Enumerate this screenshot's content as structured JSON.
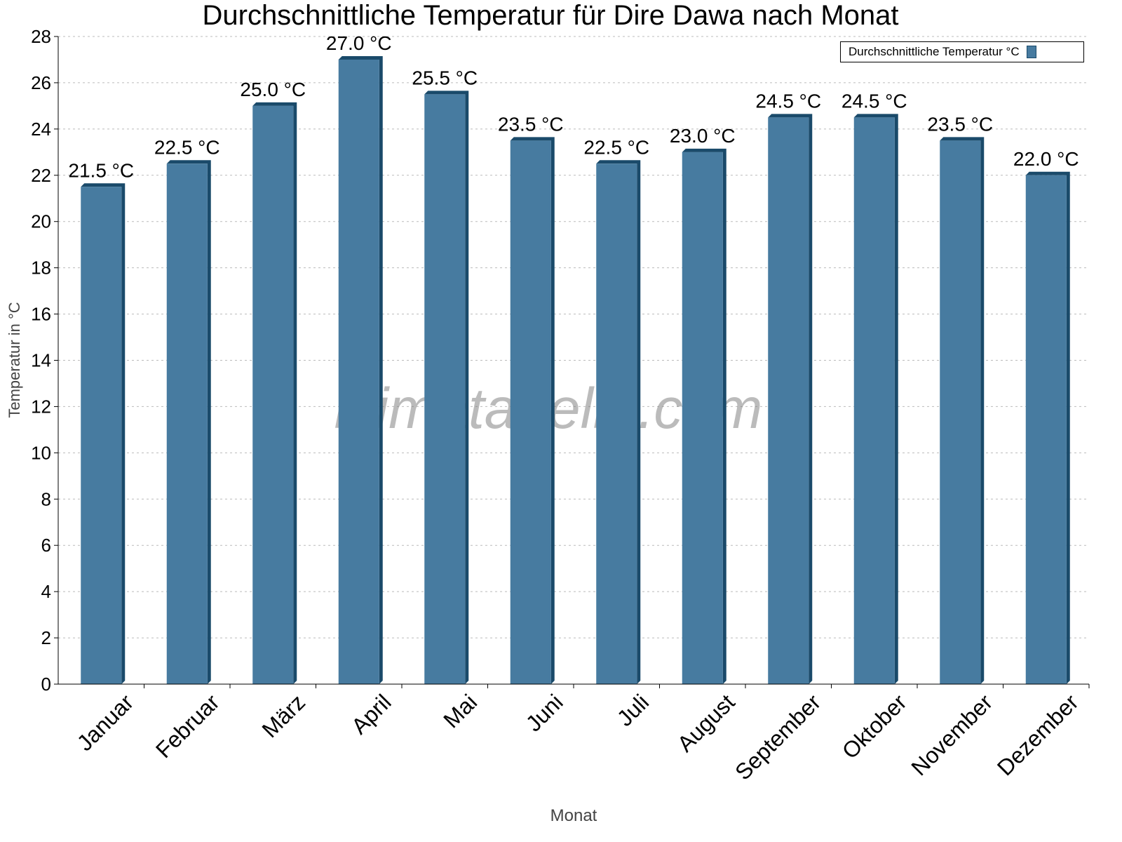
{
  "chart_data": {
    "type": "bar",
    "title": "Durchschnittliche Temperatur für Dire Dawa nach Monat",
    "xlabel": "Monat",
    "ylabel": "Temperatur in °C",
    "ylim": [
      0,
      28
    ],
    "yticks": [
      0,
      2,
      4,
      6,
      8,
      10,
      12,
      14,
      16,
      18,
      20,
      22,
      24,
      26,
      28
    ],
    "grid": true,
    "legend_position": "top-right",
    "categories": [
      "Januar",
      "Februar",
      "März",
      "April",
      "Mai",
      "Juni",
      "Juli",
      "August",
      "September",
      "Oktober",
      "November",
      "Dezember"
    ],
    "series": [
      {
        "name": "Durchschnittliche Temperatur °C",
        "values": [
          21.5,
          22.5,
          25.0,
          27.0,
          25.5,
          23.5,
          22.5,
          23.0,
          24.5,
          24.5,
          23.5,
          22.0
        ]
      }
    ],
    "data_labels": [
      "21.5 °C",
      "22.5 °C",
      "25.0 °C",
      "27.0 °C",
      "25.5 °C",
      "23.5 °C",
      "22.5 °C",
      "23.0 °C",
      "24.5 °C",
      "24.5 °C",
      "23.5 °C",
      "22.0 °C"
    ],
    "colors": {
      "bar": "#477ba0",
      "bar_side": "#1a4a6a"
    },
    "watermark": "klimatabelle.com"
  }
}
